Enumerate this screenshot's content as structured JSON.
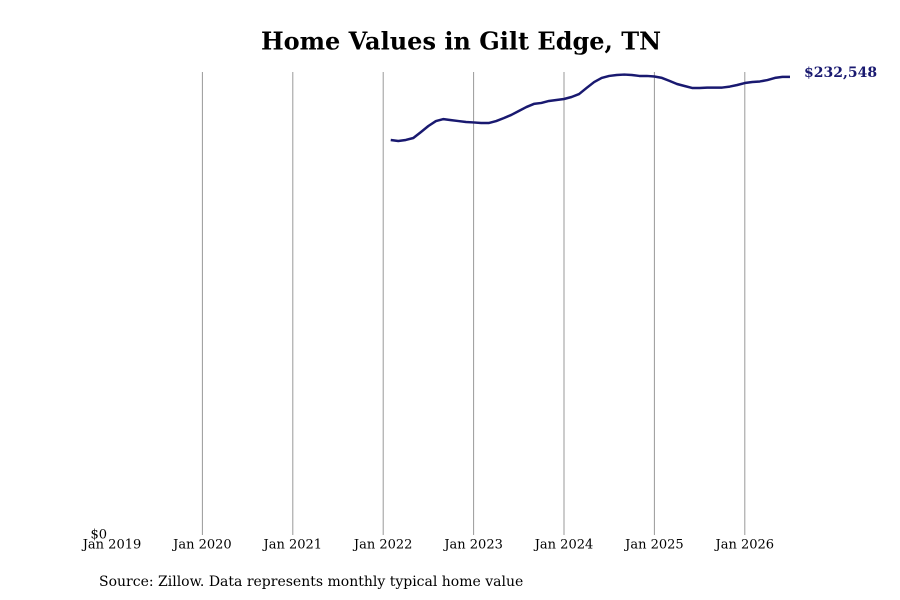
{
  "chart_data": {
    "type": "line",
    "title": "Home Values in Gilt Edge, TN",
    "source": "Source: Zillow. Data represents monthly typical home value",
    "x": [
      "2022-02",
      "2022-03",
      "2022-04",
      "2022-05",
      "2022-06",
      "2022-07",
      "2022-08",
      "2022-09",
      "2022-10",
      "2022-11",
      "2022-12",
      "2023-01",
      "2023-02",
      "2023-03",
      "2023-04",
      "2023-05",
      "2023-06",
      "2023-07",
      "2023-08",
      "2023-09",
      "2023-10",
      "2023-11",
      "2023-12",
      "2024-01",
      "2024-02",
      "2024-03",
      "2024-04",
      "2024-05",
      "2024-06",
      "2024-07",
      "2024-08",
      "2024-09",
      "2024-10",
      "2024-11",
      "2024-12",
      "2025-01",
      "2025-02",
      "2025-03",
      "2025-04",
      "2025-05",
      "2025-06",
      "2025-07",
      "2025-08",
      "2025-09",
      "2025-10",
      "2025-11",
      "2025-12",
      "2026-01",
      "2026-02",
      "2026-03",
      "2026-04",
      "2026-05",
      "2026-06",
      "2026-07"
    ],
    "series": [
      {
        "name": "Home value",
        "color": "#191970",
        "values": [
          200500,
          200000,
          200500,
          201500,
          204500,
          207600,
          210100,
          211100,
          210600,
          210100,
          209600,
          209400,
          209100,
          209100,
          210100,
          211600,
          213200,
          215200,
          217200,
          218800,
          219300,
          220300,
          220800,
          221300,
          222300,
          223800,
          226900,
          229900,
          232000,
          233000,
          233500,
          233700,
          233500,
          233000,
          233000,
          232700,
          232000,
          230500,
          228900,
          227900,
          226900,
          226900,
          227100,
          227100,
          227100,
          227600,
          228400,
          229400,
          229900,
          230200,
          230900,
          232000,
          232500,
          232548
        ],
        "value_labels": [
          null,
          null,
          null,
          null,
          null,
          null,
          null,
          null,
          null,
          null,
          null,
          null,
          null,
          null,
          null,
          null,
          null,
          null,
          null,
          null,
          null,
          null,
          null,
          null,
          null,
          null,
          null,
          null,
          null,
          null,
          null,
          null,
          null,
          null,
          null,
          null,
          null,
          null,
          null,
          null,
          null,
          null,
          null,
          null,
          null,
          null,
          null,
          null,
          null,
          null,
          null,
          null,
          null,
          "$232,548"
        ]
      }
    ],
    "xlim": [
      "2019-01",
      "2026-07"
    ],
    "xticks": [
      {
        "value": "2019-01",
        "label": "Jan 2019"
      },
      {
        "value": "2020-01",
        "label": "Jan 2020"
      },
      {
        "value": "2021-01",
        "label": "Jan 2021"
      },
      {
        "value": "2022-01",
        "label": "Jan 2022"
      },
      {
        "value": "2023-01",
        "label": "Jan 2023"
      },
      {
        "value": "2024-01",
        "label": "Jan 2024"
      },
      {
        "value": "2025-01",
        "label": "Jan 2025"
      },
      {
        "value": "2026-01",
        "label": "Jan 2026"
      }
    ],
    "ylim": [
      0,
      235000
    ],
    "yticks": [
      {
        "value": 0,
        "label": "$0"
      }
    ],
    "grid": "x"
  }
}
